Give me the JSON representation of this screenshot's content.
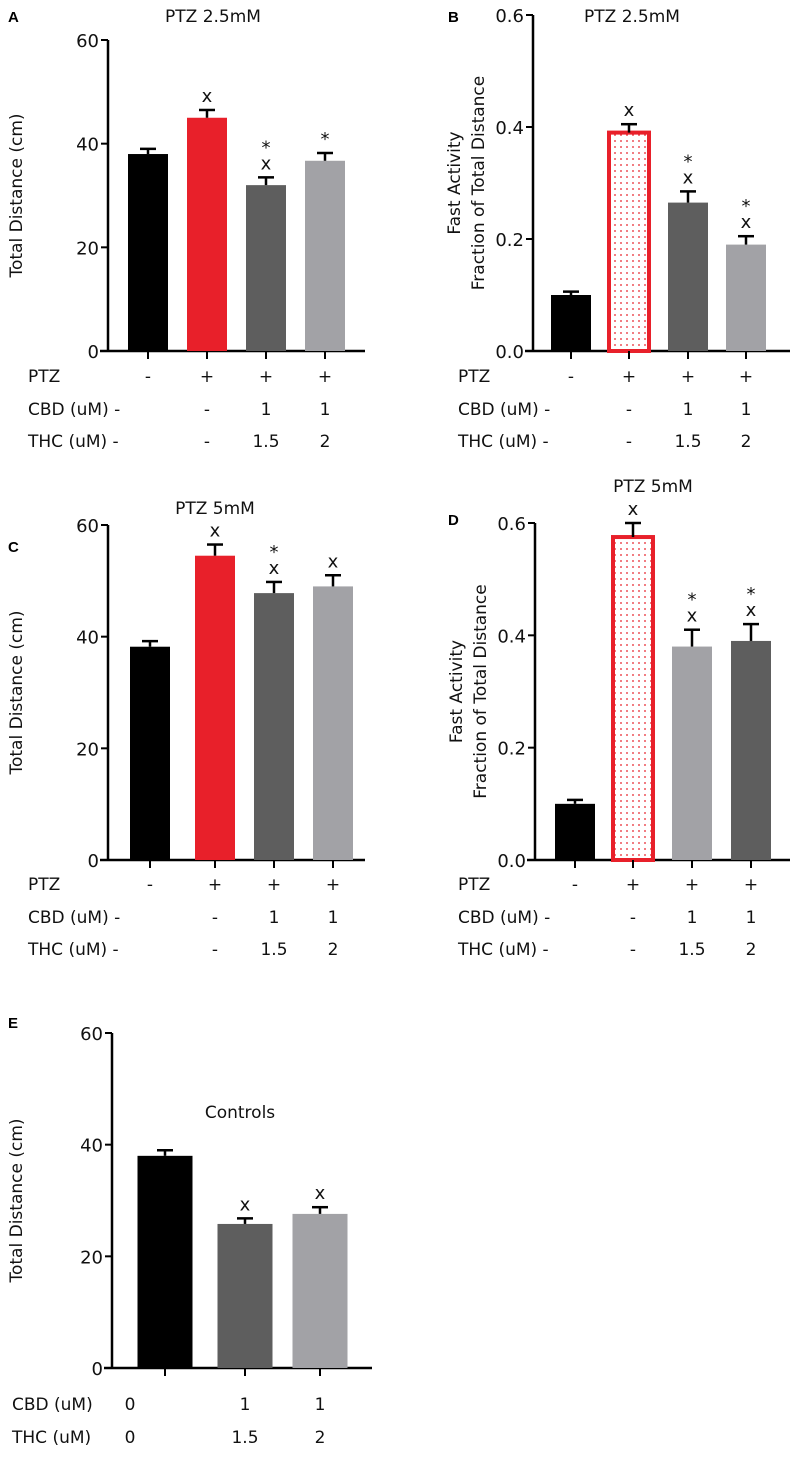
{
  "colors": {
    "black": "#000000",
    "red": "#e8202a",
    "dark_gray": "#5e5e5e",
    "light_gray": "#a2a2a6"
  },
  "chart_data": [
    {
      "panel": "A",
      "type": "bar",
      "title": "PTZ 2.5mM",
      "ylabel": [
        "Total Distance (cm)"
      ],
      "ylim": [
        0,
        60
      ],
      "yticks": [
        "0",
        "20",
        "40",
        "60"
      ],
      "ytick_values": [
        0,
        20,
        40,
        60
      ],
      "values": [
        38,
        45,
        32,
        36.7
      ],
      "errors": [
        1,
        1.5,
        1.5,
        1.5
      ],
      "bar_colors": [
        "black",
        "red",
        "dark_gray",
        "light_gray"
      ],
      "bar_fill": [
        "solid",
        "solid",
        "solid",
        "solid"
      ],
      "annotations": [
        [
          "",
          ""
        ],
        [
          "",
          "x"
        ],
        [
          "*",
          "x"
        ],
        [
          "",
          "*"
        ]
      ],
      "rows": [
        {
          "label": "PTZ",
          "values": [
            "-",
            "+",
            "+",
            "+"
          ]
        },
        {
          "label": "CBD (uM) -",
          "values": [
            "-",
            "1",
            "1"
          ]
        },
        {
          "label": "THC (uM) -",
          "values": [
            "-",
            "1.5",
            "2"
          ]
        }
      ]
    },
    {
      "panel": "B",
      "type": "bar",
      "title": "PTZ 2.5mM",
      "ylabel": [
        "Fast Activity",
        "Fraction of Total Distance"
      ],
      "ylim": [
        0,
        0.6
      ],
      "yticks": [
        "0.0",
        "0.2",
        "0.4",
        "0.6"
      ],
      "ytick_values": [
        0,
        0.2,
        0.4,
        0.6
      ],
      "values": [
        0.1,
        0.39,
        0.265,
        0.19
      ],
      "errors": [
        0.006,
        0.015,
        0.02,
        0.015
      ],
      "bar_colors": [
        "black",
        "red",
        "dark_gray",
        "light_gray"
      ],
      "bar_fill": [
        "solid",
        "dotted",
        "solid",
        "solid"
      ],
      "annotations": [
        [
          "",
          ""
        ],
        [
          "",
          "x"
        ],
        [
          "*",
          "x"
        ],
        [
          "*",
          "x"
        ]
      ],
      "rows": [
        {
          "label": "PTZ",
          "values": [
            "-",
            "+",
            "+",
            "+"
          ]
        },
        {
          "label": "CBD (uM) -",
          "values": [
            "-",
            "1",
            "1"
          ]
        },
        {
          "label": "THC (uM) -",
          "values": [
            "-",
            "1.5",
            "2"
          ]
        }
      ]
    },
    {
      "panel": "C",
      "type": "bar",
      "title": "PTZ 5mM",
      "ylabel": [
        "Total Distance (cm)"
      ],
      "ylim": [
        0,
        60
      ],
      "yticks": [
        "0",
        "20",
        "40",
        "60"
      ],
      "ytick_values": [
        0,
        20,
        40,
        60
      ],
      "values": [
        38.2,
        54.5,
        47.8,
        49
      ],
      "errors": [
        1,
        2,
        2,
        2
      ],
      "bar_colors": [
        "black",
        "red",
        "dark_gray",
        "light_gray"
      ],
      "bar_fill": [
        "solid",
        "solid",
        "solid",
        "solid"
      ],
      "annotations": [
        [
          "",
          ""
        ],
        [
          "",
          "x"
        ],
        [
          "*",
          "x"
        ],
        [
          "",
          "x"
        ]
      ],
      "rows": [
        {
          "label": "PTZ",
          "values": [
            "-",
            "+",
            "+",
            "+"
          ]
        },
        {
          "label": "CBD (uM) -",
          "values": [
            "-",
            "1",
            "1"
          ]
        },
        {
          "label": "THC (uM) -",
          "values": [
            "-",
            "1.5",
            "2"
          ]
        }
      ]
    },
    {
      "panel": "D",
      "type": "bar",
      "title": "PTZ 5mM",
      "ylabel": [
        "Fast Activity",
        "Fraction of Total Distance"
      ],
      "ylim": [
        0,
        0.6
      ],
      "yticks": [
        "0.0",
        "0.2",
        "0.4",
        "0.6"
      ],
      "ytick_values": [
        0,
        0.2,
        0.4,
        0.6
      ],
      "values": [
        0.1,
        0.575,
        0.38,
        0.39
      ],
      "errors": [
        0.007,
        0.025,
        0.03,
        0.03
      ],
      "bar_colors": [
        "black",
        "red",
        "light_gray",
        "dark_gray"
      ],
      "bar_fill": [
        "solid",
        "dotted",
        "solid",
        "solid"
      ],
      "annotations": [
        [
          "",
          ""
        ],
        [
          "",
          "x"
        ],
        [
          "*",
          "x"
        ],
        [
          "*",
          "x"
        ]
      ],
      "rows": [
        {
          "label": "PTZ",
          "values": [
            "-",
            "+",
            "+",
            "+"
          ]
        },
        {
          "label": "CBD (uM) -",
          "values": [
            "-",
            "1",
            "1"
          ]
        },
        {
          "label": "THC (uM) -",
          "values": [
            "-",
            "1.5",
            "2"
          ]
        }
      ]
    },
    {
      "panel": "E",
      "type": "bar",
      "title": "Controls",
      "ylabel": [
        "Total Distance (cm)"
      ],
      "ylim": [
        0,
        60
      ],
      "yticks": [
        "0",
        "20",
        "40",
        "60"
      ],
      "ytick_values": [
        0,
        20,
        40,
        60
      ],
      "values": [
        38,
        25.8,
        27.6
      ],
      "errors": [
        1,
        1,
        1.2
      ],
      "bar_colors": [
        "black",
        "dark_gray",
        "light_gray"
      ],
      "bar_fill": [
        "solid",
        "solid",
        "solid"
      ],
      "annotations": [
        [
          "",
          ""
        ],
        [
          "",
          "x"
        ],
        [
          "",
          "x"
        ]
      ],
      "rows": [
        {
          "label": "CBD (uM)",
          "values": [
            "0",
            "1",
            "1"
          ]
        },
        {
          "label": "THC (uM)",
          "values": [
            "0",
            "1.5",
            "2"
          ]
        }
      ]
    }
  ]
}
